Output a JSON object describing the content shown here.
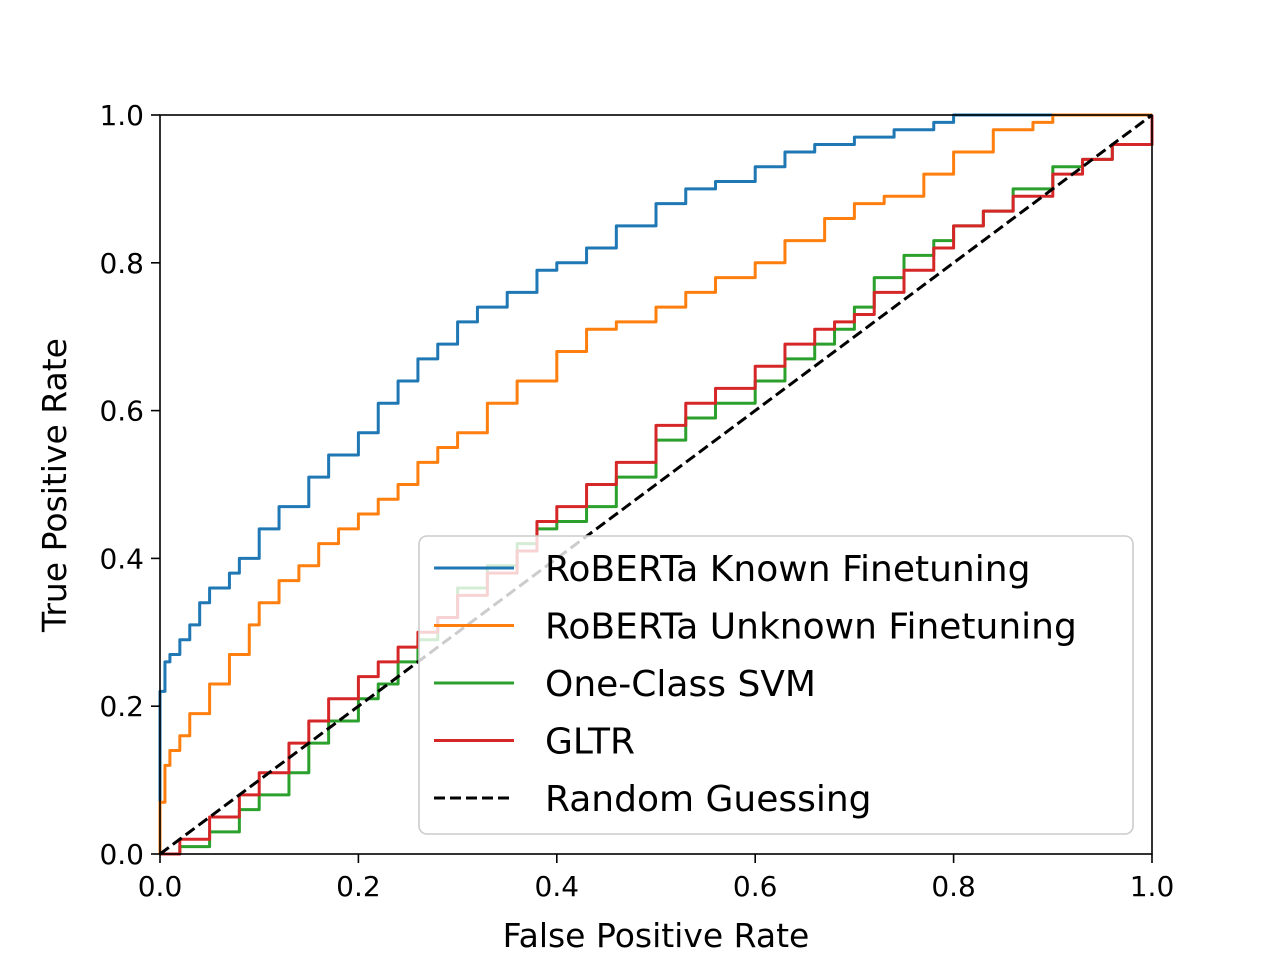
{
  "chart_data": {
    "type": "line",
    "title": "",
    "xlabel": "False Positive Rate",
    "ylabel": "True Positive Rate",
    "xlim": [
      0.0,
      1.0
    ],
    "ylim": [
      0.0,
      1.0
    ],
    "xticks": [
      "0.0",
      "0.2",
      "0.4",
      "0.6",
      "0.8",
      "1.0"
    ],
    "yticks": [
      "0.0",
      "0.2",
      "0.4",
      "0.6",
      "0.8",
      "1.0"
    ],
    "grid": false,
    "legend_position": "lower-right",
    "series": [
      {
        "name": "RoBERTa Known Finetuning",
        "color": "#1f77b4",
        "dash": "solid",
        "x": [
          0.0,
          0.0,
          0.005,
          0.01,
          0.02,
          0.03,
          0.04,
          0.05,
          0.07,
          0.08,
          0.1,
          0.12,
          0.15,
          0.17,
          0.2,
          0.22,
          0.24,
          0.26,
          0.28,
          0.3,
          0.32,
          0.35,
          0.38,
          0.4,
          0.43,
          0.46,
          0.5,
          0.53,
          0.56,
          0.6,
          0.63,
          0.66,
          0.7,
          0.74,
          0.78,
          0.8,
          0.85,
          0.9,
          0.95,
          1.0
        ],
        "y": [
          0.0,
          0.22,
          0.26,
          0.27,
          0.29,
          0.31,
          0.34,
          0.36,
          0.38,
          0.4,
          0.44,
          0.47,
          0.51,
          0.54,
          0.57,
          0.61,
          0.64,
          0.67,
          0.69,
          0.72,
          0.74,
          0.76,
          0.79,
          0.8,
          0.82,
          0.85,
          0.88,
          0.9,
          0.91,
          0.93,
          0.95,
          0.96,
          0.97,
          0.98,
          0.99,
          1.0,
          1.0,
          1.0,
          1.0,
          1.0
        ]
      },
      {
        "name": "RoBERTa Unknown Finetuning",
        "color": "#ff7f0e",
        "dash": "solid",
        "x": [
          0.0,
          0.0,
          0.005,
          0.01,
          0.02,
          0.03,
          0.05,
          0.07,
          0.09,
          0.1,
          0.12,
          0.14,
          0.16,
          0.18,
          0.2,
          0.22,
          0.24,
          0.26,
          0.28,
          0.3,
          0.33,
          0.36,
          0.4,
          0.43,
          0.46,
          0.5,
          0.53,
          0.56,
          0.6,
          0.63,
          0.67,
          0.7,
          0.73,
          0.77,
          0.8,
          0.84,
          0.88,
          0.9,
          0.95,
          1.0
        ],
        "y": [
          0.0,
          0.07,
          0.12,
          0.14,
          0.16,
          0.19,
          0.23,
          0.27,
          0.31,
          0.34,
          0.37,
          0.39,
          0.42,
          0.44,
          0.46,
          0.48,
          0.5,
          0.53,
          0.55,
          0.57,
          0.61,
          0.64,
          0.68,
          0.71,
          0.72,
          0.74,
          0.76,
          0.78,
          0.8,
          0.83,
          0.86,
          0.88,
          0.89,
          0.92,
          0.95,
          0.98,
          0.99,
          1.0,
          1.0,
          1.0
        ]
      },
      {
        "name": "One-Class SVM",
        "color": "#2ca02c",
        "dash": "solid",
        "x": [
          0.0,
          0.02,
          0.05,
          0.08,
          0.1,
          0.13,
          0.15,
          0.17,
          0.2,
          0.22,
          0.24,
          0.26,
          0.28,
          0.3,
          0.33,
          0.36,
          0.38,
          0.4,
          0.43,
          0.46,
          0.5,
          0.53,
          0.56,
          0.6,
          0.63,
          0.66,
          0.68,
          0.7,
          0.72,
          0.75,
          0.78,
          0.8,
          0.83,
          0.86,
          0.9,
          0.93,
          0.96,
          1.0
        ],
        "y": [
          0.0,
          0.01,
          0.03,
          0.06,
          0.08,
          0.11,
          0.15,
          0.18,
          0.21,
          0.23,
          0.26,
          0.29,
          0.32,
          0.36,
          0.39,
          0.42,
          0.44,
          0.45,
          0.47,
          0.51,
          0.56,
          0.59,
          0.61,
          0.64,
          0.67,
          0.69,
          0.71,
          0.74,
          0.78,
          0.81,
          0.83,
          0.85,
          0.87,
          0.9,
          0.93,
          0.94,
          0.96,
          1.0
        ]
      },
      {
        "name": "GLTR",
        "color": "#d62728",
        "dash": "solid",
        "x": [
          0.0,
          0.02,
          0.05,
          0.08,
          0.1,
          0.13,
          0.15,
          0.17,
          0.2,
          0.22,
          0.24,
          0.26,
          0.28,
          0.3,
          0.33,
          0.36,
          0.38,
          0.4,
          0.43,
          0.46,
          0.5,
          0.53,
          0.56,
          0.6,
          0.63,
          0.66,
          0.68,
          0.7,
          0.72,
          0.75,
          0.78,
          0.8,
          0.83,
          0.86,
          0.9,
          0.93,
          0.96,
          1.0
        ],
        "y": [
          0.0,
          0.02,
          0.05,
          0.08,
          0.11,
          0.15,
          0.18,
          0.21,
          0.24,
          0.26,
          0.28,
          0.3,
          0.32,
          0.35,
          0.38,
          0.41,
          0.45,
          0.47,
          0.5,
          0.53,
          0.58,
          0.61,
          0.63,
          0.66,
          0.69,
          0.71,
          0.72,
          0.73,
          0.76,
          0.79,
          0.82,
          0.85,
          0.87,
          0.89,
          0.92,
          0.94,
          0.96,
          1.0
        ]
      },
      {
        "name": "Random Guessing",
        "color": "#000000",
        "dash": "dashed",
        "x": [
          0.0,
          1.0
        ],
        "y": [
          0.0,
          1.0
        ]
      }
    ]
  }
}
